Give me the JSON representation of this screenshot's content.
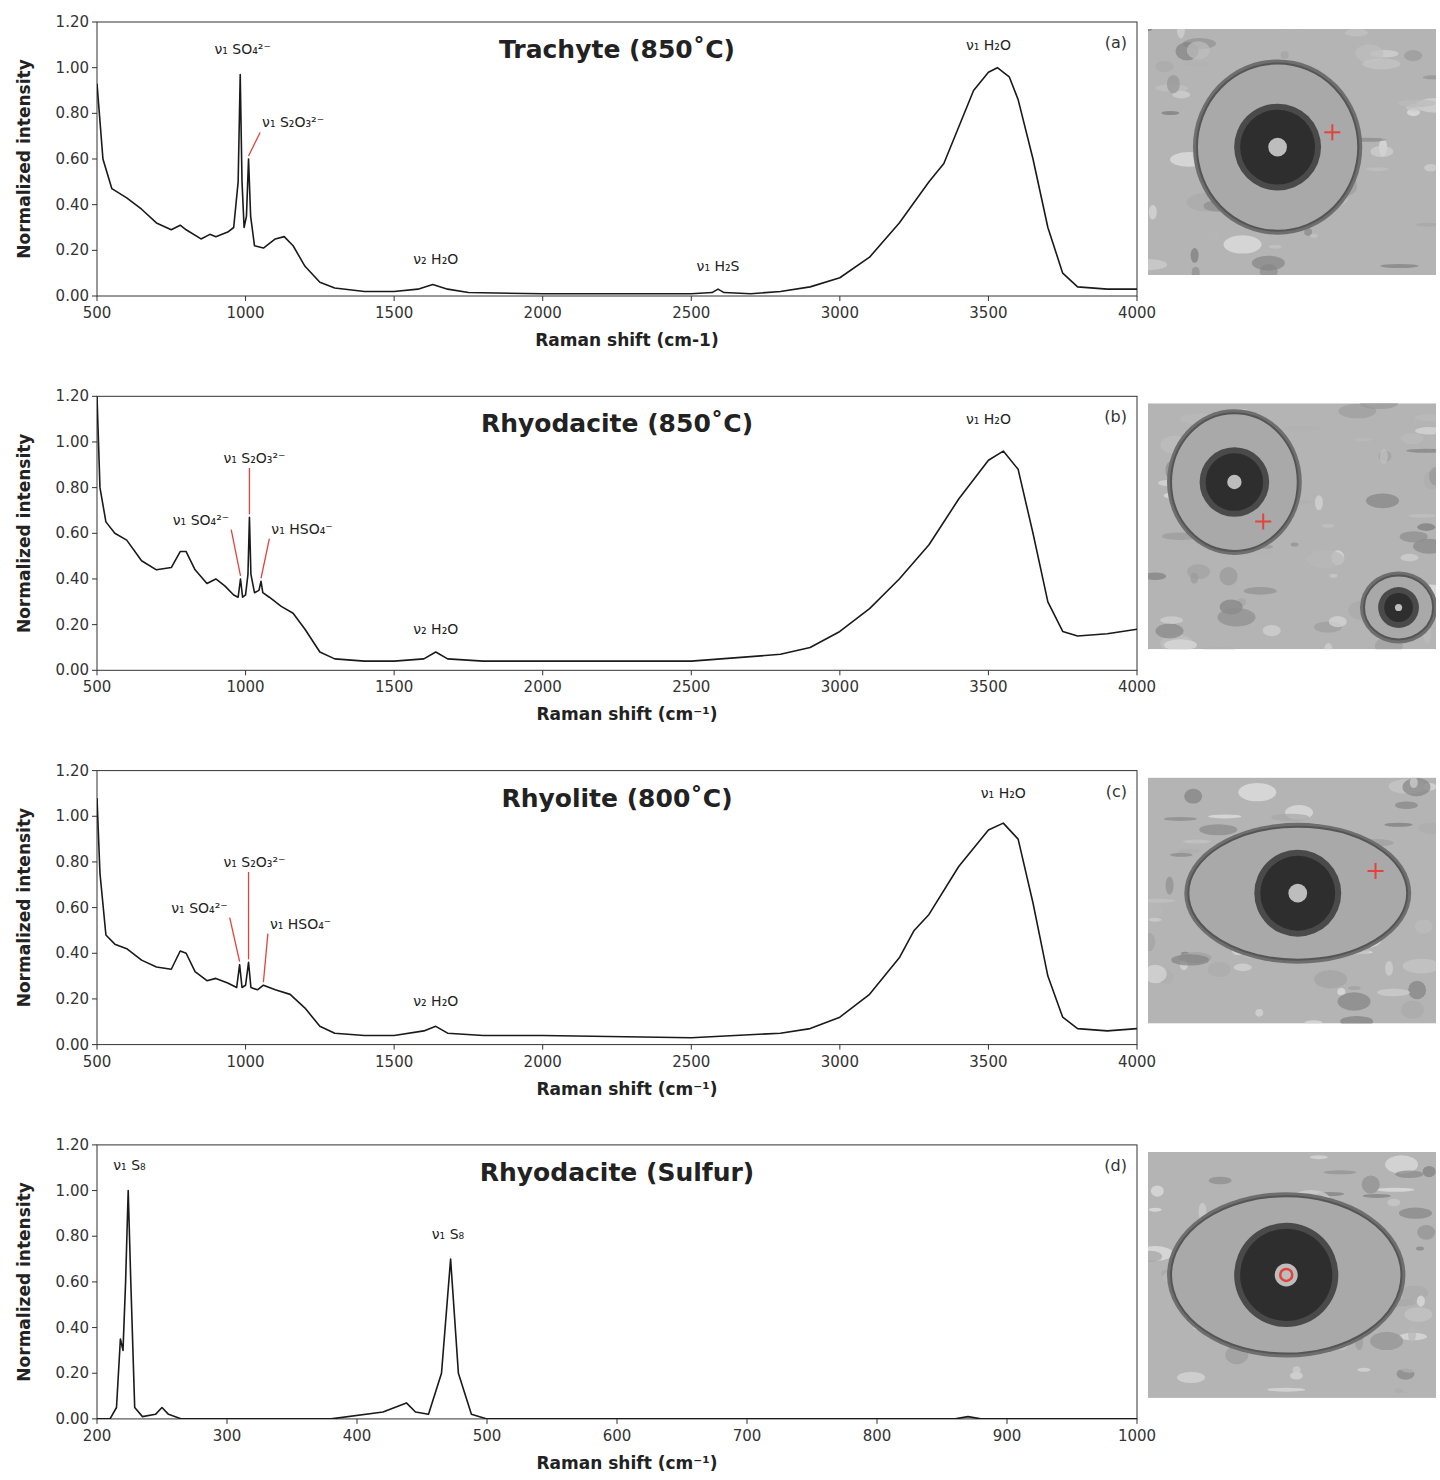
{
  "chart_data": [
    {
      "type": "line",
      "title": "Trachyte (850˚C)",
      "panel_label": "(a)",
      "x_label": "Raman shift (cm-1)",
      "y_label": "Normalized intensity",
      "color": "#1a1a1a",
      "grid": false,
      "xlim": [
        500,
        4000
      ],
      "ylim": [
        0,
        1.2
      ],
      "xticks": [
        500,
        1000,
        1500,
        2000,
        2500,
        3000,
        3500,
        4000
      ],
      "yticks": [
        {
          "value": 0,
          "label": "0.00"
        },
        {
          "value": 0.2,
          "label": "0.20"
        },
        {
          "value": 0.4,
          "label": "0.40"
        },
        {
          "value": 0.6,
          "label": "0.60"
        },
        {
          "value": 0.8,
          "label": "0.80"
        },
        {
          "value": 1.0,
          "label": "1.00"
        },
        {
          "value": 1.2,
          "label": "1.20"
        }
      ],
      "x": [
        500,
        520,
        550,
        600,
        650,
        700,
        750,
        780,
        800,
        850,
        880,
        900,
        940,
        960,
        975,
        982,
        988,
        995,
        1003,
        1010,
        1017,
        1030,
        1060,
        1100,
        1130,
        1160,
        1200,
        1250,
        1300,
        1400,
        1500,
        1580,
        1630,
        1680,
        1750,
        2000,
        2500,
        2570,
        2590,
        2610,
        2700,
        2800,
        2900,
        3000,
        3100,
        3200,
        3300,
        3350,
        3400,
        3450,
        3500,
        3530,
        3570,
        3600,
        3650,
        3700,
        3750,
        3800,
        3900,
        4000
      ],
      "values": [
        0.93,
        0.6,
        0.47,
        0.43,
        0.38,
        0.32,
        0.29,
        0.31,
        0.29,
        0.25,
        0.27,
        0.26,
        0.28,
        0.3,
        0.5,
        0.97,
        0.5,
        0.3,
        0.35,
        0.6,
        0.35,
        0.22,
        0.21,
        0.25,
        0.26,
        0.22,
        0.13,
        0.06,
        0.035,
        0.02,
        0.02,
        0.03,
        0.05,
        0.03,
        0.015,
        0.01,
        0.01,
        0.015,
        0.03,
        0.015,
        0.01,
        0.02,
        0.04,
        0.08,
        0.17,
        0.32,
        0.5,
        0.58,
        0.74,
        0.9,
        0.98,
        1.0,
        0.96,
        0.86,
        0.6,
        0.3,
        0.1,
        0.04,
        0.03,
        0.03
      ],
      "annotations": [
        {
          "text": "ν₁ SO₄²⁻",
          "x": 990,
          "y": 1.08
        },
        {
          "text": "ν₁ S₂O₃²⁻",
          "x": 1160,
          "y": 0.76,
          "arrow_to": 1010
        },
        {
          "text": "ν₂ H₂O",
          "x": 1640,
          "y": 0.16
        },
        {
          "text": "ν₁ H₂S",
          "x": 2590,
          "y": 0.13
        },
        {
          "text": "ν₁ H₂O",
          "x": 3500,
          "y": 1.1
        }
      ]
    },
    {
      "type": "line",
      "title": "Rhyodacite (850˚C)",
      "panel_label": "(b)",
      "x_label": "Raman shift (cm⁻¹)",
      "y_label": "Normalized intensity",
      "color": "#1a1a1a",
      "grid": false,
      "xlim": [
        500,
        4000
      ],
      "ylim": [
        0,
        1.2
      ],
      "xticks": [
        500,
        1000,
        1500,
        2000,
        2500,
        3000,
        3500,
        4000
      ],
      "yticks": [
        {
          "value": 0,
          "label": "0.00"
        },
        {
          "value": 0.2,
          "label": "0.20"
        },
        {
          "value": 0.4,
          "label": "0.40"
        },
        {
          "value": 0.6,
          "label": "0.60"
        },
        {
          "value": 0.8,
          "label": "0.80"
        },
        {
          "value": 1.0,
          "label": "1.00"
        },
        {
          "value": 1.2,
          "label": "1.20"
        }
      ],
      "x": [
        500,
        510,
        530,
        560,
        600,
        650,
        700,
        750,
        780,
        800,
        830,
        870,
        900,
        930,
        960,
        975,
        983,
        990,
        1000,
        1008,
        1013,
        1018,
        1030,
        1045,
        1052,
        1058,
        1080,
        1120,
        1160,
        1200,
        1250,
        1300,
        1400,
        1500,
        1600,
        1640,
        1680,
        1800,
        2000,
        2500,
        2800,
        2900,
        3000,
        3100,
        3200,
        3300,
        3400,
        3500,
        3550,
        3600,
        3650,
        3700,
        3750,
        3800,
        3900,
        4000
      ],
      "values": [
        1.2,
        0.8,
        0.65,
        0.6,
        0.57,
        0.48,
        0.44,
        0.45,
        0.52,
        0.52,
        0.44,
        0.38,
        0.4,
        0.37,
        0.33,
        0.32,
        0.4,
        0.32,
        0.33,
        0.42,
        0.67,
        0.42,
        0.34,
        0.35,
        0.39,
        0.34,
        0.32,
        0.28,
        0.25,
        0.18,
        0.08,
        0.05,
        0.04,
        0.04,
        0.05,
        0.08,
        0.05,
        0.04,
        0.04,
        0.04,
        0.07,
        0.1,
        0.17,
        0.27,
        0.4,
        0.55,
        0.75,
        0.92,
        0.96,
        0.88,
        0.6,
        0.3,
        0.17,
        0.15,
        0.16,
        0.18
      ],
      "annotations": [
        {
          "text": "ν₁ SO₄²⁻",
          "x": 850,
          "y": 0.66,
          "arrow_to": 983
        },
        {
          "text": "ν₁ S₂O₃²⁻",
          "x": 1030,
          "y": 0.93,
          "arrow_to": 1013
        },
        {
          "text": "ν₁ HSO₄⁻",
          "x": 1190,
          "y": 0.62,
          "arrow_to": 1052
        },
        {
          "text": "ν₂ H₂O",
          "x": 1640,
          "y": 0.18
        },
        {
          "text": "ν₁ H₂O",
          "x": 3500,
          "y": 1.1
        }
      ]
    },
    {
      "type": "line",
      "title": "Rhyolite (800˚C)",
      "panel_label": "(c)",
      "x_label": "Raman shift (cm⁻¹)",
      "y_label": "Normalized intensity",
      "color": "#1a1a1a",
      "grid": false,
      "xlim": [
        500,
        4000
      ],
      "ylim": [
        0,
        1.2
      ],
      "xticks": [
        500,
        1000,
        1500,
        2000,
        2500,
        3000,
        3500,
        4000
      ],
      "yticks": [
        {
          "value": 0,
          "label": "0.00"
        },
        {
          "value": 0.2,
          "label": "0.20"
        },
        {
          "value": 0.4,
          "label": "0.40"
        },
        {
          "value": 0.6,
          "label": "0.60"
        },
        {
          "value": 0.8,
          "label": "0.80"
        },
        {
          "value": 1.0,
          "label": "1.00"
        },
        {
          "value": 1.2,
          "label": "1.20"
        }
      ],
      "x": [
        500,
        510,
        530,
        560,
        600,
        650,
        700,
        750,
        780,
        800,
        830,
        870,
        900,
        940,
        970,
        980,
        988,
        1000,
        1010,
        1018,
        1040,
        1060,
        1100,
        1150,
        1200,
        1250,
        1300,
        1400,
        1500,
        1600,
        1640,
        1680,
        1800,
        2000,
        2500,
        2800,
        2900,
        3000,
        3100,
        3200,
        3250,
        3300,
        3400,
        3500,
        3550,
        3600,
        3650,
        3700,
        3750,
        3800,
        3900,
        4000
      ],
      "values": [
        1.08,
        0.75,
        0.48,
        0.44,
        0.42,
        0.37,
        0.34,
        0.33,
        0.41,
        0.4,
        0.32,
        0.28,
        0.29,
        0.27,
        0.25,
        0.35,
        0.25,
        0.26,
        0.36,
        0.25,
        0.24,
        0.26,
        0.24,
        0.22,
        0.16,
        0.08,
        0.05,
        0.04,
        0.04,
        0.06,
        0.08,
        0.05,
        0.04,
        0.04,
        0.03,
        0.05,
        0.07,
        0.12,
        0.22,
        0.38,
        0.5,
        0.57,
        0.78,
        0.94,
        0.97,
        0.9,
        0.62,
        0.3,
        0.12,
        0.07,
        0.06,
        0.07
      ],
      "annotations": [
        {
          "text": "ν₁ SO₄²⁻",
          "x": 845,
          "y": 0.6,
          "arrow_to": 980
        },
        {
          "text": "ν₁ S₂O₃²⁻",
          "x": 1030,
          "y": 0.8,
          "arrow_to": 1010
        },
        {
          "text": "ν₁ HSO₄⁻",
          "x": 1185,
          "y": 0.53,
          "arrow_to": 1060
        },
        {
          "text": "ν₂ H₂O",
          "x": 1640,
          "y": 0.19
        },
        {
          "text": "ν₁ H₂O",
          "x": 3550,
          "y": 1.1
        }
      ]
    },
    {
      "type": "line",
      "title": "Rhyodacite (Sulfur)",
      "panel_label": "(d)",
      "x_label": "Raman shift (cm⁻¹)",
      "y_label": "Normalized intensity",
      "color": "#1a1a1a",
      "grid": false,
      "xlim": [
        200,
        1000
      ],
      "ylim": [
        0,
        1.2
      ],
      "xticks": [
        200,
        300,
        400,
        500,
        600,
        700,
        800,
        900,
        1000
      ],
      "yticks": [
        {
          "value": 0,
          "label": "0.00"
        },
        {
          "value": 0.2,
          "label": "0.20"
        },
        {
          "value": 0.4,
          "label": "0.40"
        },
        {
          "value": 0.6,
          "label": "0.60"
        },
        {
          "value": 0.8,
          "label": "0.80"
        },
        {
          "value": 1.0,
          "label": "1.00"
        },
        {
          "value": 1.2,
          "label": "1.20"
        }
      ],
      "x": [
        200,
        210,
        215,
        218,
        220,
        222,
        224,
        226,
        229,
        235,
        245,
        250,
        255,
        265,
        380,
        420,
        438,
        445,
        455,
        465,
        472,
        478,
        488,
        500,
        860,
        870,
        880,
        1000
      ],
      "values": [
        0,
        0,
        0.05,
        0.35,
        0.3,
        0.6,
        1.0,
        0.6,
        0.05,
        0.01,
        0.02,
        0.05,
        0.02,
        0,
        0,
        0.03,
        0.07,
        0.03,
        0.02,
        0.2,
        0.7,
        0.2,
        0.02,
        0,
        0,
        0.01,
        0,
        0
      ],
      "annotations": [
        {
          "text": "ν₁ S₈",
          "x": 225,
          "y": 1.11
        },
        {
          "text": "ν₁ S₈",
          "x": 470,
          "y": 0.81
        }
      ]
    }
  ]
}
